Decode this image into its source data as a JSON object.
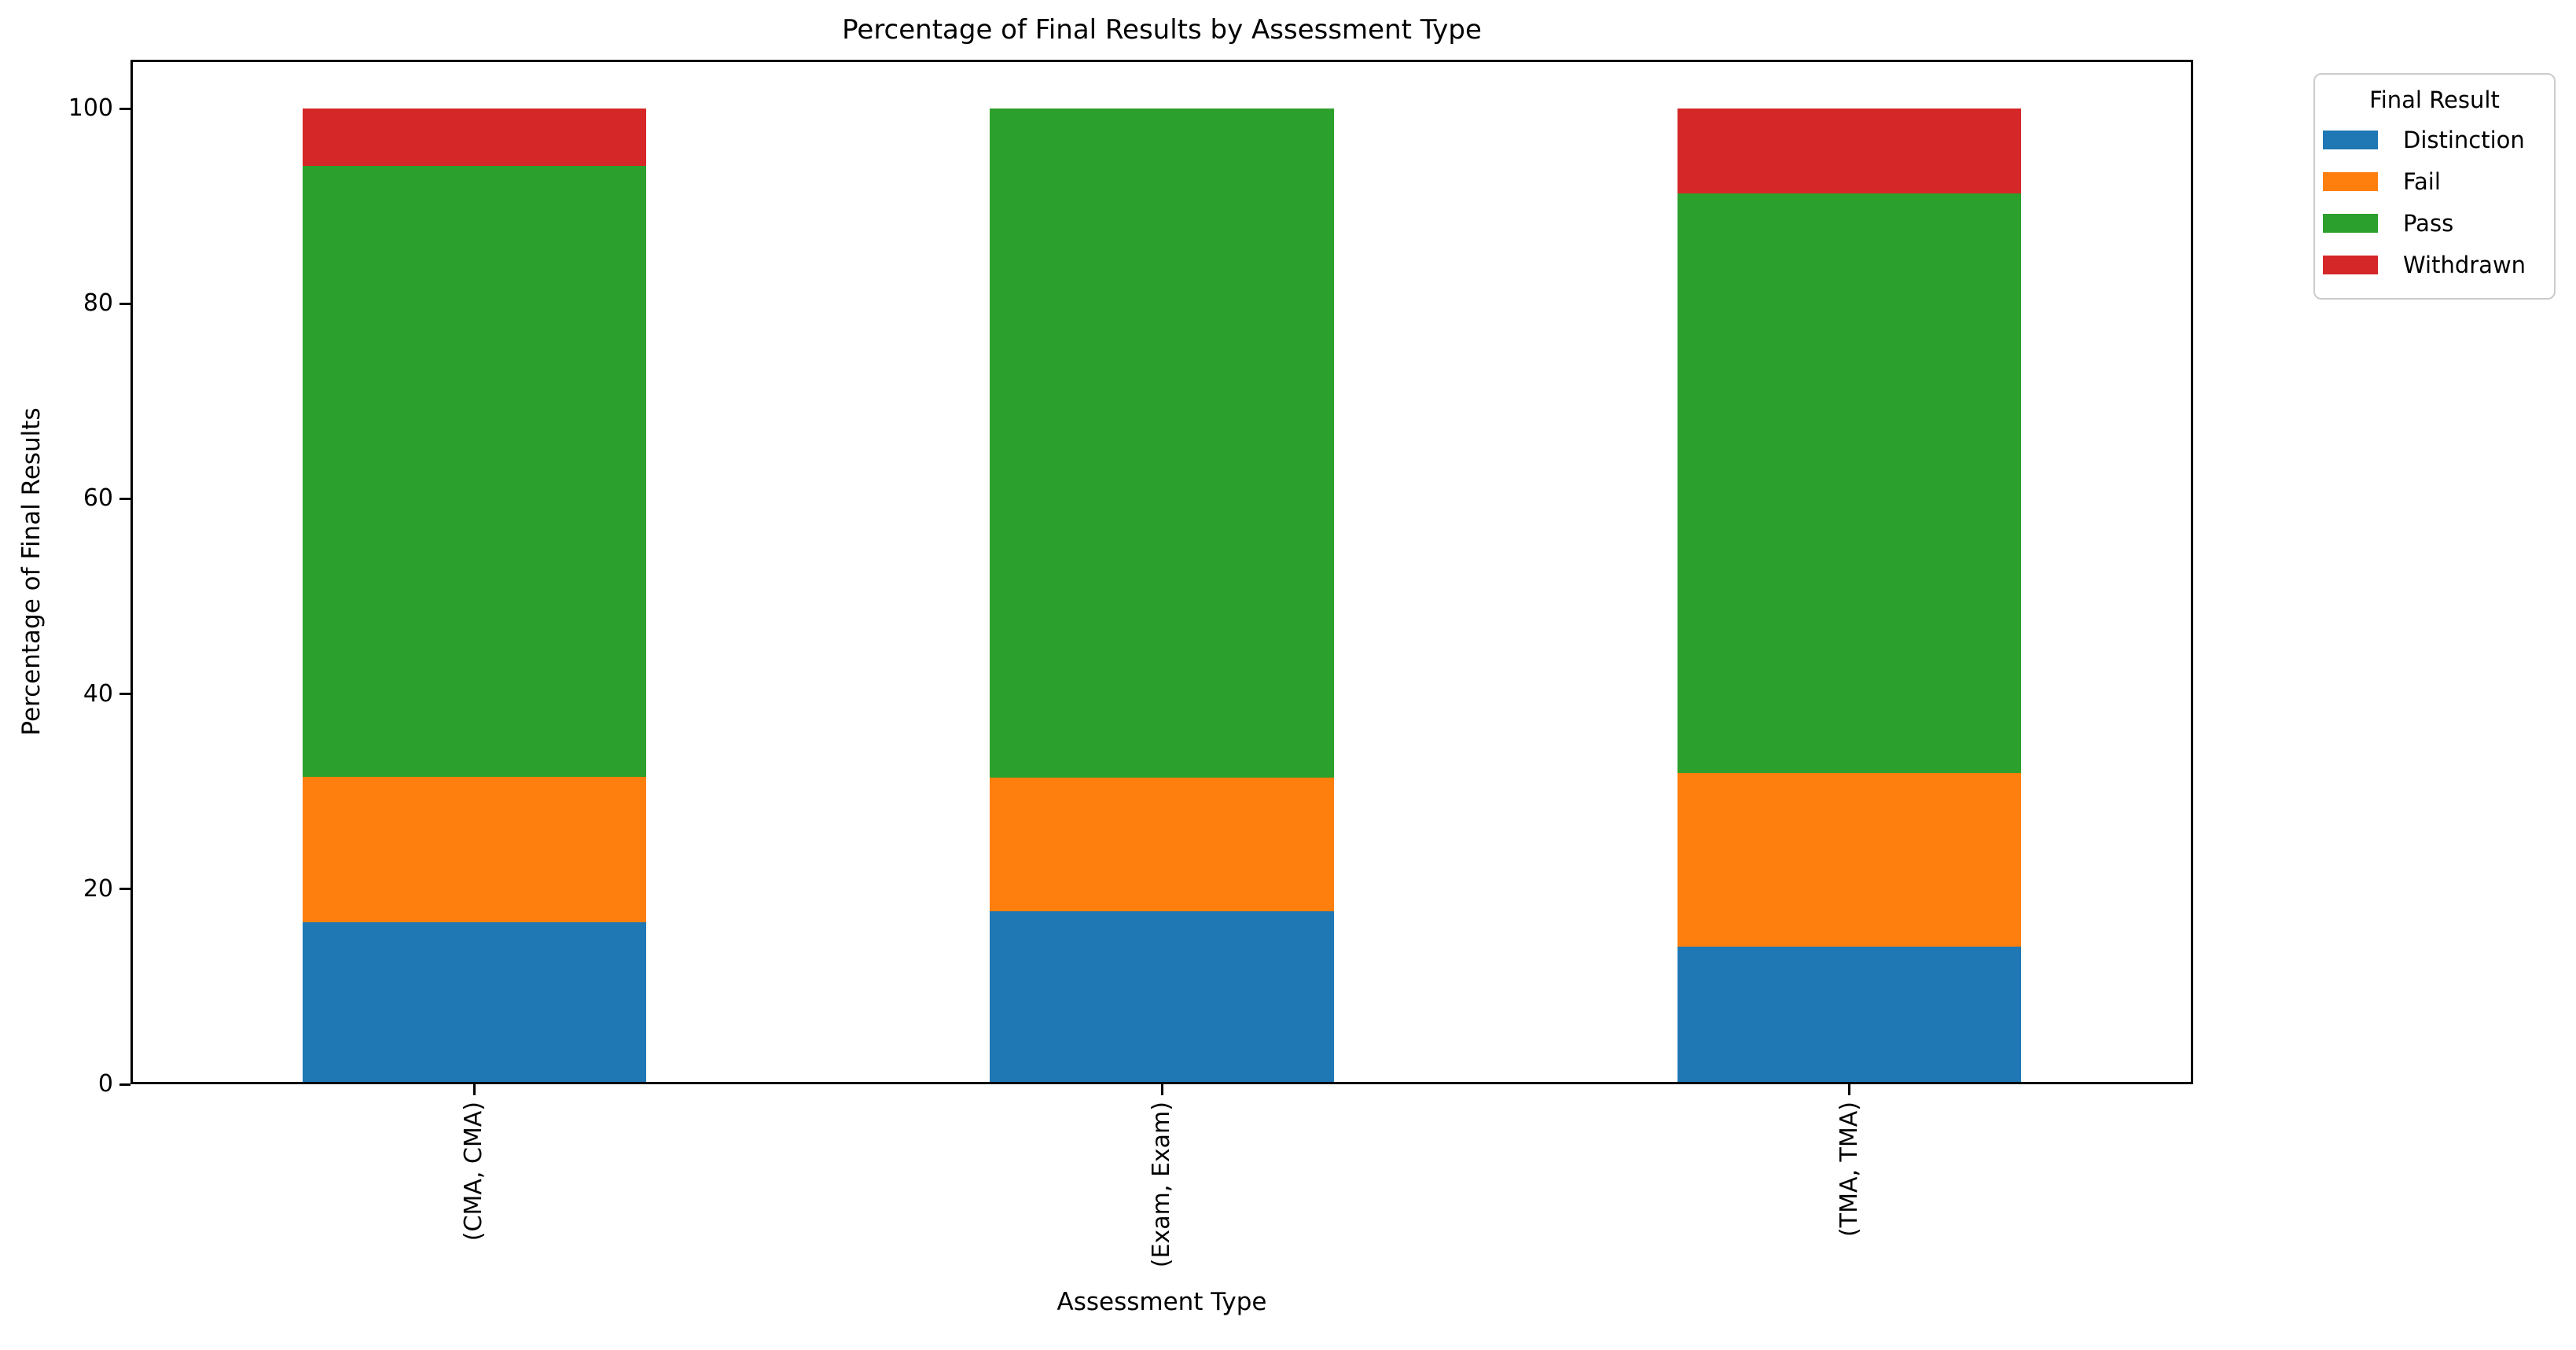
{
  "chart_data": {
    "type": "bar",
    "stacked": true,
    "title": "Percentage of Final Results by Assessment Type",
    "xlabel": "Assessment Type",
    "ylabel": "Percentage of Final Results",
    "categories": [
      "(CMA, CMA)",
      "(Exam, Exam)",
      "(TMA, TMA)"
    ],
    "series": [
      {
        "name": "Distinction",
        "color": "#1f77b4",
        "values": [
          16.6,
          17.7,
          14.1
        ]
      },
      {
        "name": "Fail",
        "color": "#ff7f0e",
        "values": [
          14.9,
          13.7,
          17.8
        ]
      },
      {
        "name": "Pass",
        "color": "#2ca02c",
        "values": [
          62.6,
          68.6,
          59.4
        ]
      },
      {
        "name": "Withdrawn",
        "color": "#d62728",
        "values": [
          5.9,
          0.0,
          8.7
        ]
      }
    ],
    "ylim": [
      0,
      105
    ],
    "yticks": [
      0,
      20,
      40,
      60,
      80,
      100
    ],
    "grid": false,
    "legend": {
      "title": "Final Result",
      "position": "upper-right-outside"
    }
  }
}
